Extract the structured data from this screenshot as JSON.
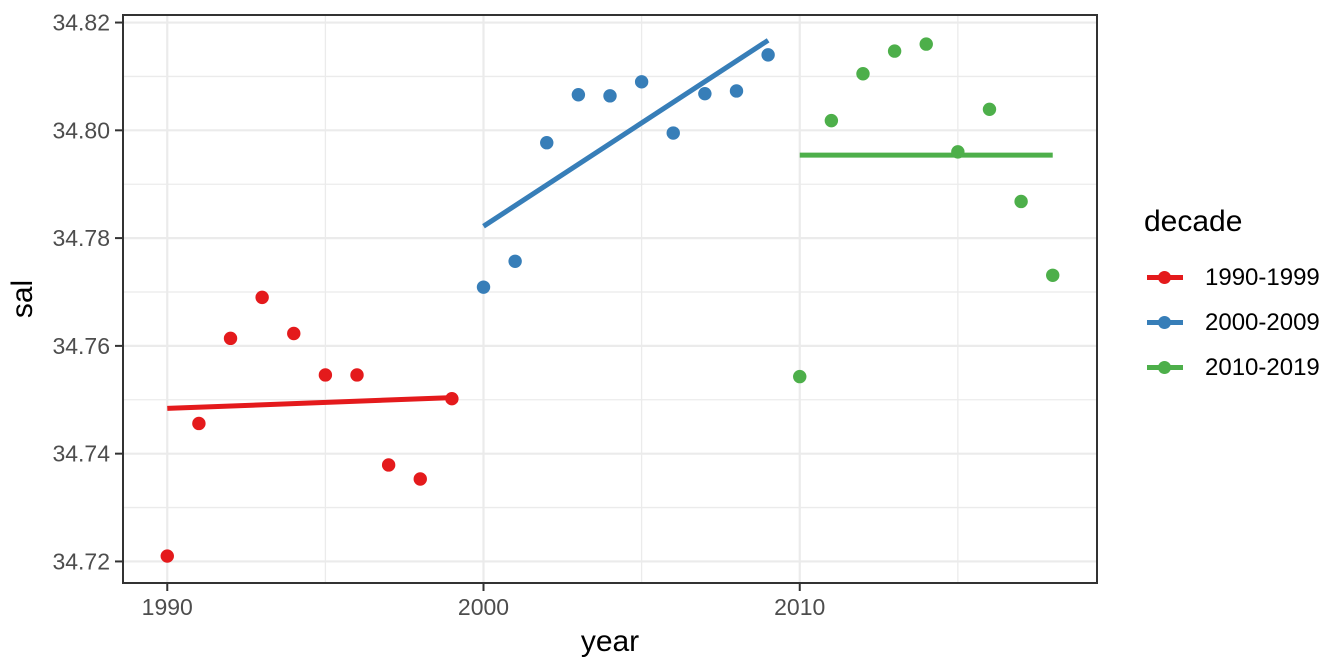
{
  "chart_data": {
    "type": "scatter",
    "title": "",
    "xlabel": "year",
    "ylabel": "sal",
    "legend_title": "decade",
    "legend_position": "right",
    "grid": true,
    "xlim": [
      1988.6,
      2019.4
    ],
    "ylim": [
      34.716,
      34.8214
    ],
    "x_major_ticks": [
      1990,
      2000,
      2010
    ],
    "x_tick_labels": [
      "1990",
      "2000",
      "2010"
    ],
    "x_minor_gridlines": [
      1995,
      2005,
      2015
    ],
    "y_major_ticks": [
      34.72,
      34.74,
      34.76,
      34.78,
      34.8,
      34.82
    ],
    "y_tick_labels": [
      "34.72",
      "34.74",
      "34.76",
      "34.78",
      "34.80",
      "34.82"
    ],
    "y_minor_gridlines": [
      34.73,
      34.75,
      34.77,
      34.79,
      34.81
    ],
    "colors": {
      "background": "#ffffff",
      "grid": "#ebebeb",
      "border": "#333333",
      "tick_label": "#4d4d4d"
    },
    "series": [
      {
        "name": "1990-1999",
        "color": "#e41a1c",
        "points": [
          [
            1990,
            34.721
          ],
          [
            1991,
            34.7456
          ],
          [
            1992,
            34.7614
          ],
          [
            1993,
            34.769
          ],
          [
            1994,
            34.7623
          ],
          [
            1995,
            34.7546
          ],
          [
            1996,
            34.7546
          ],
          [
            1997,
            34.7379
          ],
          [
            1998,
            34.7353
          ],
          [
            1999,
            34.7502
          ]
        ],
        "trend_line": {
          "x1": 1990,
          "y1": 34.7484,
          "x2": 1999,
          "y2": 34.7504
        }
      },
      {
        "name": "2000-2009",
        "color": "#377eb8",
        "points": [
          [
            2000,
            34.7709
          ],
          [
            2001,
            34.7757
          ],
          [
            2002,
            34.7977
          ],
          [
            2003,
            34.8066
          ],
          [
            2004,
            34.8064
          ],
          [
            2005,
            34.809
          ],
          [
            2006,
            34.7995
          ],
          [
            2007,
            34.8068
          ],
          [
            2008,
            34.8073
          ],
          [
            2009,
            34.814
          ]
        ],
        "trend_line": {
          "x1": 2000,
          "y1": 34.7822,
          "x2": 2009,
          "y2": 34.8167
        }
      },
      {
        "name": "2010-2019",
        "color": "#4daf4a",
        "points": [
          [
            2010,
            34.7543
          ],
          [
            2011,
            34.8018
          ],
          [
            2012,
            34.8105
          ],
          [
            2013,
            34.8147
          ],
          [
            2014,
            34.816
          ],
          [
            2015,
            34.796
          ],
          [
            2016,
            34.8039
          ],
          [
            2017,
            34.7868
          ],
          [
            2018,
            34.7731
          ]
        ],
        "trend_line": {
          "x1": 2010,
          "y1": 34.7954,
          "x2": 2018,
          "y2": 34.7954
        }
      }
    ]
  }
}
